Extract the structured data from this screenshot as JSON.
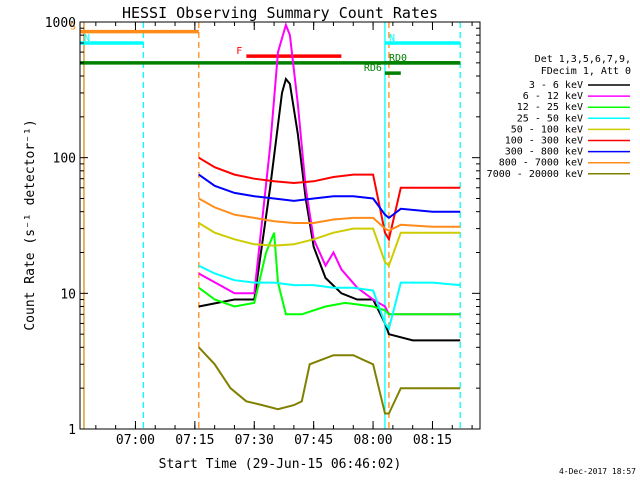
{
  "chart_data": {
    "type": "line",
    "title": "HESSI Observing Summary Count Rates",
    "xlabel": "Start Time (29-Jun-15 06:46:02)",
    "ylabel": "Count Rate (s⁻¹ detector⁻¹)",
    "y_scale": "log",
    "ylim": [
      1,
      1000
    ],
    "y_ticks": [
      {
        "value": 1,
        "label": "1"
      },
      {
        "value": 10,
        "label": "10"
      },
      {
        "value": 100,
        "label": "100"
      },
      {
        "value": 1000,
        "label": "1000"
      }
    ],
    "xlim": [
      "06:46",
      "08:27"
    ],
    "x_ticks": [
      "07:00",
      "07:15",
      "07:30",
      "07:45",
      "08:00",
      "08:15"
    ],
    "grid": false,
    "legend_header": [
      "Det 1,3,5,6,7,9,",
      "FDecim 1, Att 0"
    ],
    "series": [
      {
        "name": "3 - 6 keV",
        "color": "#000000",
        "points": [
          [
            "07:16",
            8
          ],
          [
            "07:25",
            9
          ],
          [
            "07:30",
            9
          ],
          [
            "07:34",
            60
          ],
          [
            "07:37",
            300
          ],
          [
            "07:38",
            380
          ],
          [
            "07:39",
            350
          ],
          [
            "07:41",
            150
          ],
          [
            "07:43",
            50
          ],
          [
            "07:45",
            22
          ],
          [
            "07:48",
            13
          ],
          [
            "07:52",
            10
          ],
          [
            "07:56",
            9
          ],
          [
            "08:00",
            9
          ],
          [
            "08:03",
            6
          ],
          [
            "08:04",
            5
          ],
          [
            "08:10",
            4.5
          ],
          [
            "08:22",
            4.5
          ]
        ]
      },
      {
        "name": "6 - 12 keV",
        "color": "#ff00ff",
        "points": [
          [
            "07:16",
            14
          ],
          [
            "07:25",
            10
          ],
          [
            "07:30",
            10
          ],
          [
            "07:34",
            120
          ],
          [
            "07:36",
            600
          ],
          [
            "07:38",
            950
          ],
          [
            "07:39",
            800
          ],
          [
            "07:41",
            250
          ],
          [
            "07:43",
            60
          ],
          [
            "07:45",
            25
          ],
          [
            "07:48",
            16
          ],
          [
            "07:50",
            20
          ],
          [
            "07:52",
            15
          ],
          [
            "07:56",
            11
          ],
          [
            "08:00",
            9
          ],
          [
            "08:03",
            8
          ],
          [
            "08:04",
            7
          ],
          [
            "08:10",
            7
          ],
          [
            "08:22",
            7
          ]
        ]
      },
      {
        "name": "12 - 25 keV",
        "color": "#00ff00",
        "points": [
          [
            "07:16",
            11
          ],
          [
            "07:20",
            9
          ],
          [
            "07:25",
            8
          ],
          [
            "07:30",
            8.5
          ],
          [
            "07:33",
            20
          ],
          [
            "07:35",
            28
          ],
          [
            "07:36",
            12
          ],
          [
            "07:38",
            7
          ],
          [
            "07:42",
            7
          ],
          [
            "07:48",
            8
          ],
          [
            "07:53",
            8.5
          ],
          [
            "08:00",
            8
          ],
          [
            "08:03",
            7.5
          ],
          [
            "08:04",
            7
          ],
          [
            "08:10",
            7
          ],
          [
            "08:22",
            7
          ]
        ]
      },
      {
        "name": "25 - 50 keV",
        "color": "#00ffff",
        "points": [
          [
            "07:16",
            16
          ],
          [
            "07:20",
            14
          ],
          [
            "07:25",
            12.5
          ],
          [
            "07:30",
            12
          ],
          [
            "07:35",
            12
          ],
          [
            "07:40",
            11.5
          ],
          [
            "07:45",
            11.5
          ],
          [
            "07:50",
            11
          ],
          [
            "07:55",
            11
          ],
          [
            "08:00",
            10.5
          ],
          [
            "08:03",
            6
          ],
          [
            "08:04",
            5.5
          ],
          [
            "08:07",
            12
          ],
          [
            "08:15",
            12
          ],
          [
            "08:22",
            11.5
          ]
        ]
      },
      {
        "name": "50 - 100 keV",
        "color": "#cccc00",
        "points": [
          [
            "07:16",
            33
          ],
          [
            "07:20",
            28
          ],
          [
            "07:25",
            25
          ],
          [
            "07:30",
            23
          ],
          [
            "07:35",
            22.5
          ],
          [
            "07:40",
            23
          ],
          [
            "07:45",
            25
          ],
          [
            "07:50",
            28
          ],
          [
            "07:55",
            30
          ],
          [
            "08:00",
            30
          ],
          [
            "08:03",
            17
          ],
          [
            "08:04",
            16
          ],
          [
            "08:07",
            28
          ],
          [
            "08:15",
            28
          ],
          [
            "08:22",
            28
          ]
        ]
      },
      {
        "name": "100 - 300 keV",
        "color": "#ff0000",
        "points": [
          [
            "07:16",
            100
          ],
          [
            "07:20",
            85
          ],
          [
            "07:25",
            75
          ],
          [
            "07:30",
            70
          ],
          [
            "07:35",
            67
          ],
          [
            "07:40",
            65
          ],
          [
            "07:45",
            67
          ],
          [
            "07:50",
            72
          ],
          [
            "07:55",
            75
          ],
          [
            "08:00",
            75
          ],
          [
            "08:03",
            28
          ],
          [
            "08:04",
            25
          ],
          [
            "08:07",
            60
          ],
          [
            "08:15",
            60
          ],
          [
            "08:22",
            60
          ]
        ]
      },
      {
        "name": "300 - 800 keV",
        "color": "#0000ff",
        "points": [
          [
            "07:16",
            75
          ],
          [
            "07:20",
            62
          ],
          [
            "07:25",
            55
          ],
          [
            "07:30",
            52
          ],
          [
            "07:35",
            50
          ],
          [
            "07:40",
            48
          ],
          [
            "07:45",
            50
          ],
          [
            "07:50",
            52
          ],
          [
            "07:55",
            52
          ],
          [
            "08:00",
            50
          ],
          [
            "08:03",
            38
          ],
          [
            "08:04",
            36
          ],
          [
            "08:07",
            42
          ],
          [
            "08:15",
            40
          ],
          [
            "08:22",
            40
          ]
        ]
      },
      {
        "name": "800 - 7000 keV",
        "color": "#ff8c1a",
        "points": [
          [
            "07:16",
            50
          ],
          [
            "07:20",
            43
          ],
          [
            "07:25",
            38
          ],
          [
            "07:30",
            36
          ],
          [
            "07:35",
            34
          ],
          [
            "07:40",
            33
          ],
          [
            "07:45",
            33
          ],
          [
            "07:50",
            35
          ],
          [
            "07:55",
            36
          ],
          [
            "08:00",
            36
          ],
          [
            "08:03",
            30
          ],
          [
            "08:04",
            29
          ],
          [
            "08:07",
            32
          ],
          [
            "08:15",
            31
          ],
          [
            "08:22",
            31
          ]
        ]
      },
      {
        "name": "7000 - 20000 keV",
        "color": "#808000",
        "points": [
          [
            "07:16",
            4
          ],
          [
            "07:20",
            3
          ],
          [
            "07:24",
            2
          ],
          [
            "07:28",
            1.6
          ],
          [
            "07:32",
            1.5
          ],
          [
            "07:36",
            1.4
          ],
          [
            "07:40",
            1.5
          ],
          [
            "07:42",
            1.6
          ],
          [
            "07:44",
            3
          ],
          [
            "07:50",
            3.5
          ],
          [
            "07:55",
            3.5
          ],
          [
            "08:00",
            3
          ],
          [
            "08:03",
            1.3
          ],
          [
            "08:04",
            1.3
          ],
          [
            "08:07",
            2
          ],
          [
            "08:15",
            2
          ],
          [
            "08:22",
            2
          ]
        ]
      }
    ],
    "observing_flags": [
      {
        "label": "S",
        "color": "#ff8c1a",
        "level": 850,
        "start": "06:46",
        "end": "07:16"
      },
      {
        "label": "N",
        "color": "#00ffff",
        "level": 700,
        "start": "06:46",
        "end": "07:02"
      },
      {
        "label": "N",
        "color": "#00ffff",
        "level": 700,
        "start": "08:03",
        "end": "08:22"
      },
      {
        "label": "",
        "color": "#008000",
        "level": 500,
        "start": "06:46",
        "end": "08:22"
      },
      {
        "label": "F",
        "color": "#ff0000",
        "level": 560,
        "start": "07:28",
        "end": "07:52"
      },
      {
        "label": "RD6",
        "color": "#008000",
        "level": 420,
        "start": "08:03",
        "end": "08:07"
      },
      {
        "label": "RD0",
        "color": "#008000",
        "level": 500,
        "start": "08:03",
        "end": "08:22"
      }
    ],
    "vertical_markers": [
      {
        "time": "06:47",
        "color": "#00ffff",
        "style": "solid"
      },
      {
        "time": "06:47",
        "color": "#ff8c1a",
        "style": "solid"
      },
      {
        "time": "07:02",
        "color": "#00ffff",
        "style": "dashed"
      },
      {
        "time": "07:16",
        "color": "#ff8c1a",
        "style": "dashed"
      },
      {
        "time": "08:03",
        "color": "#00ffff",
        "style": "solid"
      },
      {
        "time": "08:04",
        "color": "#ff8c1a",
        "style": "dashed"
      },
      {
        "time": "08:22",
        "color": "#00ffff",
        "style": "dashed"
      }
    ]
  },
  "footer": {
    "date_stamp": "4-Dec-2017 18:57"
  }
}
